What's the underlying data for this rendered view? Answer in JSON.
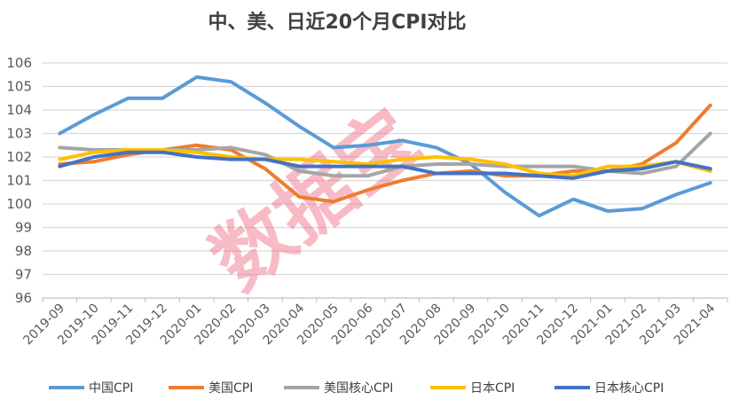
{
  "chart_data": {
    "type": "line",
    "title": "中、美、日近20个月CPI对比",
    "xlabel": "",
    "ylabel": "",
    "ylim": [
      96,
      106
    ],
    "yticks": [
      96,
      97,
      98,
      99,
      100,
      101,
      102,
      103,
      104,
      105,
      106
    ],
    "grid": true,
    "legend_position": "bottom",
    "watermark": "数据宝",
    "categories": [
      "2019-09",
      "2019-10",
      "2019-11",
      "2019-12",
      "2020-01",
      "2020-02",
      "2020-03",
      "2020-04",
      "2020-05",
      "2020-06",
      "2020-07",
      "2020-08",
      "2020-09",
      "2020-10",
      "2020-11",
      "2020-12",
      "2021-01",
      "2021-02",
      "2021-03",
      "2021-04"
    ],
    "series": [
      {
        "name": "中国CPI",
        "color": "#5b9bd5",
        "values": [
          103.0,
          103.8,
          104.5,
          104.5,
          105.4,
          105.2,
          104.3,
          103.3,
          102.4,
          102.5,
          102.7,
          102.4,
          101.7,
          100.5,
          99.5,
          100.2,
          99.7,
          99.8,
          100.4,
          100.9
        ]
      },
      {
        "name": "美国CPI",
        "color": "#ed7d31",
        "values": [
          101.7,
          101.8,
          102.1,
          102.3,
          102.5,
          102.3,
          101.5,
          100.3,
          100.1,
          100.6,
          101.0,
          101.3,
          101.4,
          101.2,
          101.2,
          101.4,
          101.4,
          101.7,
          102.6,
          104.2
        ]
      },
      {
        "name": "美国核心CPI",
        "color": "#a5a5a5",
        "values": [
          102.4,
          102.3,
          102.3,
          102.3,
          102.3,
          102.4,
          102.1,
          101.4,
          101.2,
          101.2,
          101.6,
          101.7,
          101.7,
          101.6,
          101.6,
          101.6,
          101.4,
          101.3,
          101.6,
          103.0
        ]
      },
      {
        "name": "日本CPI",
        "color": "#ffc000",
        "values": [
          101.9,
          102.2,
          102.3,
          102.3,
          102.2,
          102.0,
          101.9,
          101.9,
          101.8,
          101.7,
          101.9,
          102.0,
          101.9,
          101.7,
          101.3,
          101.2,
          101.6,
          101.6,
          101.8,
          101.4
        ]
      },
      {
        "name": "日本核心CPI",
        "color": "#4472c4",
        "values": [
          101.6,
          102.0,
          102.2,
          102.2,
          102.0,
          101.9,
          101.9,
          101.6,
          101.6,
          101.6,
          101.6,
          101.3,
          101.3,
          101.3,
          101.2,
          101.1,
          101.4,
          101.5,
          101.8,
          101.5
        ]
      }
    ]
  }
}
